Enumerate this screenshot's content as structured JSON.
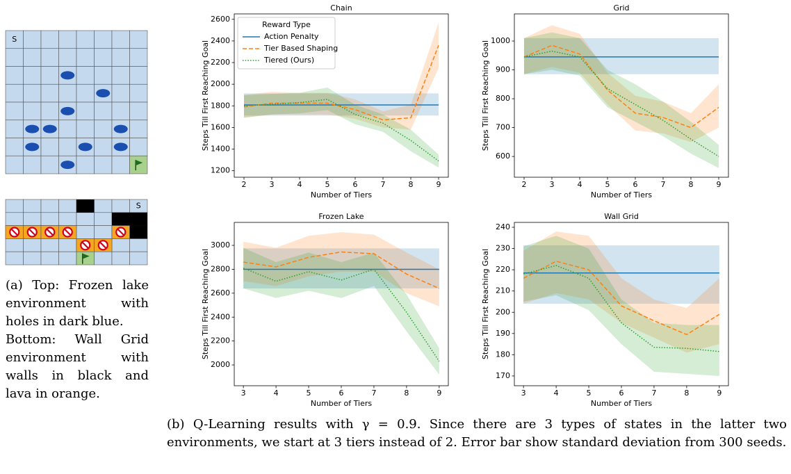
{
  "figure_a": {
    "top_start": "S",
    "bottom_start": "S",
    "caption_top": "(a) Top: Frozen lake environment with holes in dark blue.",
    "caption_bottom": "Bottom: Wall Grid environment with walls in black and lava in orange."
  },
  "caption_b": "(b) Q-Learning results with γ = 0.9. Since there are 3 types of states in the latter two environments, we start at 3 tiers instead of 2. Error bar show standard deviation from 300 seeds.",
  "chart_data": [
    {
      "type": "line",
      "title": "Chain",
      "x_label": "Number of Tiers",
      "y_label": "Steps Till First Reaching Goal",
      "x": [
        2,
        3,
        4,
        5,
        6,
        7,
        8,
        9
      ],
      "xlim": [
        1.65,
        9.35
      ],
      "xticks": [
        2,
        3,
        4,
        5,
        6,
        7,
        8,
        9
      ],
      "ylim": [
        1140,
        2650
      ],
      "yticks": [
        1200,
        1400,
        1600,
        1800,
        2000,
        2200,
        2400,
        2600
      ],
      "legend": "upper left",
      "legend_title": "Reward Type",
      "series": [
        {
          "name": "Action Penalty",
          "color": "#1f77b4",
          "style": "solid",
          "values": [
            1808,
            1808,
            1808,
            1808,
            1808,
            1808,
            1808,
            1808
          ],
          "lower": [
            1710,
            1710,
            1710,
            1710,
            1710,
            1710,
            1710,
            1710
          ],
          "upper": [
            1915,
            1915,
            1915,
            1915,
            1915,
            1915,
            1915,
            1915
          ]
        },
        {
          "name": "Tier Based Shaping",
          "color": "#ff7f0e",
          "style": "dashed",
          "values": [
            1790,
            1825,
            1825,
            1825,
            1765,
            1670,
            1690,
            2360
          ],
          "lower": [
            1690,
            1720,
            1720,
            1720,
            1680,
            1600,
            1580,
            2150
          ],
          "upper": [
            1900,
            1930,
            1920,
            1920,
            1860,
            1750,
            1810,
            2570
          ]
        },
        {
          "name": "Tiered (Ours)",
          "color": "#2ca02c",
          "style": "dotted",
          "values": [
            1800,
            1815,
            1830,
            1860,
            1720,
            1640,
            1480,
            1290
          ],
          "lower": [
            1690,
            1720,
            1730,
            1760,
            1630,
            1560,
            1380,
            1230
          ],
          "upper": [
            1900,
            1910,
            1920,
            1970,
            1810,
            1720,
            1580,
            1350
          ]
        }
      ]
    },
    {
      "type": "line",
      "title": "Grid",
      "x_label": "Number of Tiers",
      "y_label": "Steps Till First Reaching Goal",
      "x": [
        2,
        3,
        4,
        5,
        6,
        7,
        8,
        9
      ],
      "xlim": [
        1.65,
        9.35
      ],
      "xticks": [
        2,
        3,
        4,
        5,
        6,
        7,
        8,
        9
      ],
      "ylim": [
        528,
        1094
      ],
      "yticks": [
        600,
        700,
        800,
        900,
        1000
      ],
      "series": [
        {
          "color": "#1f77b4",
          "style": "solid",
          "values": [
            945,
            945,
            945,
            945,
            945,
            945,
            945,
            945
          ],
          "lower": [
            885,
            885,
            885,
            885,
            885,
            885,
            885,
            885
          ],
          "upper": [
            1010,
            1010,
            1010,
            1010,
            1010,
            1010,
            1010,
            1010
          ]
        },
        {
          "color": "#ff7f0e",
          "style": "dashed",
          "values": [
            945,
            985,
            955,
            830,
            750,
            735,
            700,
            770
          ],
          "lower": [
            885,
            910,
            890,
            780,
            690,
            680,
            650,
            700
          ],
          "upper": [
            1010,
            1055,
            1025,
            890,
            810,
            790,
            750,
            850
          ]
        },
        {
          "color": "#2ca02c",
          "style": "dotted",
          "values": [
            945,
            965,
            945,
            835,
            780,
            725,
            660,
            600
          ],
          "lower": [
            885,
            900,
            880,
            770,
            720,
            670,
            610,
            560
          ],
          "upper": [
            1010,
            1030,
            1010,
            900,
            850,
            790,
            720,
            640
          ]
        }
      ]
    },
    {
      "type": "line",
      "title": "Frozen Lake",
      "x_label": "Number of Tiers",
      "y_label": "Steps Till First Reaching Goal",
      "x": [
        3,
        4,
        5,
        6,
        7,
        8,
        9
      ],
      "xlim": [
        2.72,
        9.28
      ],
      "xticks": [
        3,
        4,
        5,
        6,
        7,
        8,
        9
      ],
      "ylim": [
        1826,
        3192
      ],
      "yticks": [
        2000,
        2200,
        2400,
        2600,
        2800,
        3000
      ],
      "series": [
        {
          "color": "#1f77b4",
          "style": "solid",
          "values": [
            2800,
            2800,
            2800,
            2800,
            2800,
            2800,
            2800
          ],
          "lower": [
            2640,
            2640,
            2640,
            2640,
            2640,
            2640,
            2640
          ],
          "upper": [
            2975,
            2975,
            2975,
            2975,
            2975,
            2975,
            2975
          ]
        },
        {
          "color": "#ff7f0e",
          "style": "dashed",
          "values": [
            2860,
            2820,
            2900,
            2945,
            2930,
            2760,
            2640
          ],
          "lower": [
            2700,
            2660,
            2740,
            2780,
            2780,
            2600,
            2490
          ],
          "upper": [
            3030,
            2980,
            3080,
            3110,
            3090,
            2940,
            2800
          ]
        },
        {
          "color": "#2ca02c",
          "style": "dotted",
          "values": [
            2810,
            2700,
            2780,
            2710,
            2800,
            2440,
            2030
          ],
          "lower": [
            2640,
            2560,
            2620,
            2560,
            2660,
            2280,
            1920
          ],
          "upper": [
            2980,
            2860,
            2940,
            2860,
            2940,
            2590,
            2140
          ]
        }
      ]
    },
    {
      "type": "line",
      "title": "Wall Grid",
      "x_label": "Number of Tiers",
      "y_label": "Steps Till First Reaching Goal",
      "x": [
        3,
        4,
        5,
        6,
        7,
        8,
        9
      ],
      "xlim": [
        2.72,
        9.28
      ],
      "xticks": [
        3,
        4,
        5,
        6,
        7,
        8,
        9
      ],
      "ylim": [
        165.4,
        242.3
      ],
      "yticks": [
        170,
        180,
        190,
        200,
        210,
        220,
        230,
        240
      ],
      "series": [
        {
          "color": "#1f77b4",
          "style": "solid",
          "values": [
            218.5,
            218.5,
            218.5,
            218.5,
            218.5,
            218.5,
            218.5
          ],
          "lower": [
            204,
            204,
            204,
            204,
            204,
            204,
            204
          ],
          "upper": [
            231.5,
            231.5,
            231.5,
            231.5,
            231.5,
            231.5,
            231.5
          ]
        },
        {
          "color": "#ff7f0e",
          "style": "dashed",
          "values": [
            216,
            224,
            220,
            203,
            196,
            189.5,
            199
          ],
          "lower": [
            204,
            209,
            206,
            195,
            188,
            181,
            185
          ],
          "upper": [
            229,
            238,
            236,
            216,
            206,
            202,
            216
          ]
        },
        {
          "color": "#2ca02c",
          "style": "dotted",
          "values": [
            218,
            222,
            216,
            195,
            183.5,
            183,
            181.5
          ],
          "lower": [
            205,
            208,
            201,
            185,
            172,
            171,
            170
          ],
          "upper": [
            231,
            236,
            230,
            206,
            195,
            194,
            194
          ]
        }
      ]
    }
  ]
}
